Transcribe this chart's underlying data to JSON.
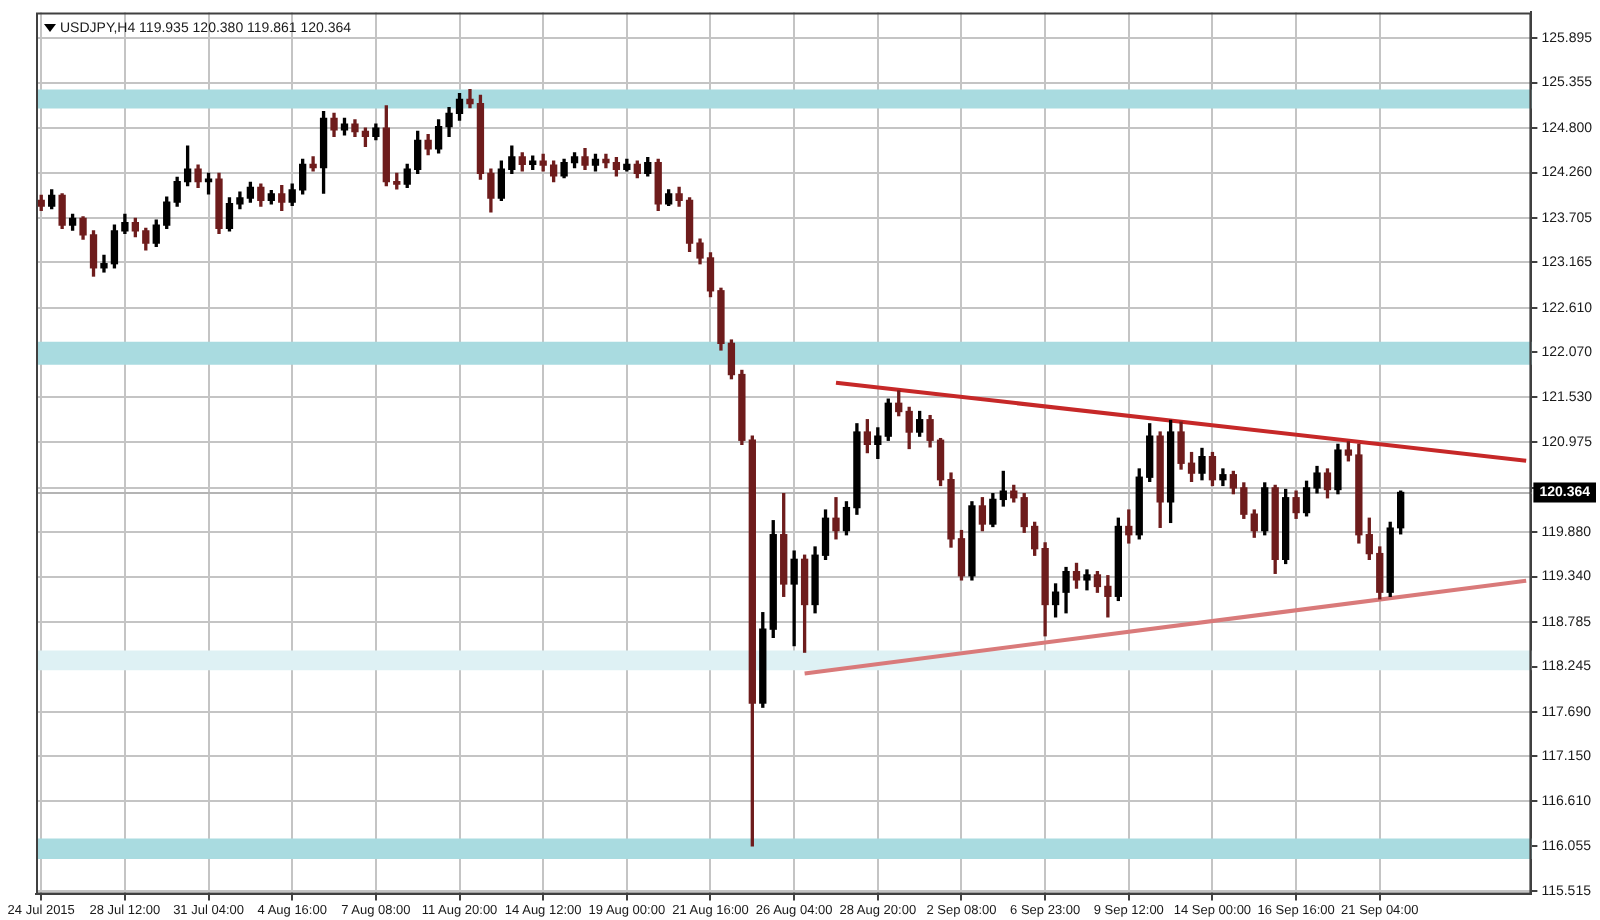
{
  "chart_data": {
    "type": "candlestick",
    "title": "USDJPY,H4 119.935 120.380 119.861 120.364",
    "categories": [
      "24 Jul 2015",
      null,
      null,
      null,
      null,
      null,
      null,
      null,
      "28 Jul 12:00",
      null,
      null,
      null,
      null,
      null,
      null,
      null,
      "31 Jul 04:00",
      null,
      null,
      null,
      null,
      null,
      null,
      null,
      "4 Aug 16:00",
      null,
      null,
      null,
      null,
      null,
      null,
      null,
      "7 Aug 08:00",
      null,
      null,
      null,
      null,
      null,
      null,
      null,
      "11 Aug 20:00",
      null,
      null,
      null,
      null,
      null,
      null,
      null,
      "14 Aug 12:00",
      null,
      null,
      null,
      null,
      null,
      null,
      null,
      "19 Aug 00:00",
      null,
      null,
      null,
      null,
      null,
      null,
      null,
      "21 Aug 16:00",
      null,
      null,
      null,
      null,
      null,
      null,
      null,
      "26 Aug 04:00",
      null,
      null,
      null,
      null,
      null,
      null,
      null,
      "28 Aug 20:00",
      null,
      null,
      null,
      null,
      null,
      null,
      null,
      "2 Sep 08:00",
      null,
      null,
      null,
      null,
      null,
      null,
      null,
      "6 Sep 23:00",
      null,
      null,
      null,
      null,
      null,
      null,
      null,
      "9 Sep 12:00",
      null,
      null,
      null,
      null,
      null,
      null,
      null,
      "14 Sep 00:00",
      null,
      null,
      null,
      null,
      null,
      null,
      null,
      "16 Sep 16:00",
      null,
      null,
      null,
      null,
      null,
      null,
      null,
      "21 Sep 04:00",
      null,
      null,
      null,
      null,
      null,
      null,
      null,
      null,
      null,
      null,
      null,
      null,
      null,
      null
    ],
    "ohlc": [
      [
        123.92,
        123.98,
        123.8,
        123.85
      ],
      [
        123.85,
        124.05,
        123.82,
        123.98
      ],
      [
        123.98,
        124.0,
        123.58,
        123.62
      ],
      [
        123.62,
        123.75,
        123.56,
        123.7
      ],
      [
        123.7,
        123.72,
        123.45,
        123.5
      ],
      [
        123.5,
        123.55,
        123.0,
        123.1
      ],
      [
        123.1,
        123.25,
        123.05,
        123.15
      ],
      [
        123.15,
        123.62,
        123.1,
        123.55
      ],
      [
        123.55,
        123.75,
        123.52,
        123.65
      ],
      [
        123.65,
        123.7,
        123.48,
        123.55
      ],
      [
        123.55,
        123.58,
        123.32,
        123.4
      ],
      [
        123.4,
        123.68,
        123.36,
        123.62
      ],
      [
        123.62,
        123.96,
        123.58,
        123.9
      ],
      [
        123.9,
        124.2,
        123.85,
        124.15
      ],
      [
        124.15,
        124.58,
        124.1,
        124.3
      ],
      [
        124.3,
        124.35,
        124.08,
        124.15
      ],
      [
        124.15,
        124.25,
        124.0,
        124.18
      ],
      [
        124.18,
        124.25,
        123.52,
        123.58
      ],
      [
        123.58,
        123.95,
        123.55,
        123.88
      ],
      [
        123.88,
        124.02,
        123.82,
        123.95
      ],
      [
        123.95,
        124.14,
        123.9,
        124.08
      ],
      [
        124.08,
        124.12,
        123.85,
        123.92
      ],
      [
        123.92,
        124.04,
        123.88,
        124.0
      ],
      [
        124.0,
        124.1,
        123.8,
        123.9
      ],
      [
        123.9,
        124.12,
        123.86,
        124.05
      ],
      [
        124.05,
        124.42,
        124.0,
        124.36
      ],
      [
        124.36,
        124.45,
        124.28,
        124.32
      ],
      [
        124.32,
        125.0,
        124.01,
        124.92
      ],
      [
        124.92,
        124.98,
        124.7,
        124.78
      ],
      [
        124.78,
        124.92,
        124.72,
        124.85
      ],
      [
        124.85,
        124.9,
        124.7,
        124.76
      ],
      [
        124.76,
        124.8,
        124.58,
        124.7
      ],
      [
        124.7,
        124.85,
        124.66,
        124.8
      ],
      [
        124.8,
        125.07,
        124.1,
        124.15
      ],
      [
        124.15,
        124.25,
        124.06,
        124.12
      ],
      [
        124.12,
        124.36,
        124.08,
        124.3
      ],
      [
        124.3,
        124.76,
        124.25,
        124.65
      ],
      [
        124.65,
        124.72,
        124.48,
        124.55
      ],
      [
        124.55,
        124.9,
        124.5,
        124.82
      ],
      [
        124.82,
        125.05,
        124.7,
        124.98
      ],
      [
        124.98,
        125.22,
        124.9,
        125.15
      ],
      [
        125.15,
        125.27,
        125.05,
        125.1
      ],
      [
        125.1,
        125.2,
        124.18,
        124.25
      ],
      [
        124.25,
        124.3,
        123.78,
        123.95
      ],
      [
        123.95,
        124.4,
        123.92,
        124.3
      ],
      [
        124.3,
        124.58,
        124.25,
        124.45
      ],
      [
        124.45,
        124.5,
        124.28,
        124.36
      ],
      [
        124.36,
        124.46,
        124.3,
        124.4
      ],
      [
        124.4,
        124.48,
        124.28,
        124.35
      ],
      [
        124.35,
        124.4,
        124.15,
        124.22
      ],
      [
        124.22,
        124.42,
        124.2,
        124.38
      ],
      [
        124.38,
        124.5,
        124.32,
        124.45
      ],
      [
        124.45,
        124.55,
        124.3,
        124.35
      ],
      [
        124.35,
        124.48,
        124.28,
        124.42
      ],
      [
        124.42,
        124.48,
        124.32,
        124.38
      ],
      [
        124.38,
        124.44,
        124.22,
        124.3
      ],
      [
        124.3,
        124.42,
        124.28,
        124.36
      ],
      [
        124.36,
        124.4,
        124.2,
        124.25
      ],
      [
        124.25,
        124.44,
        124.22,
        124.38
      ],
      [
        124.38,
        124.42,
        123.8,
        123.88
      ],
      [
        123.88,
        124.05,
        123.86,
        124.0
      ],
      [
        124.0,
        124.08,
        123.85,
        123.92
      ],
      [
        123.92,
        123.95,
        123.3,
        123.4
      ],
      [
        123.4,
        123.45,
        123.15,
        123.22
      ],
      [
        123.22,
        123.28,
        122.75,
        122.82
      ],
      [
        122.82,
        122.85,
        122.1,
        122.18
      ],
      [
        122.18,
        122.22,
        121.75,
        121.8
      ],
      [
        121.8,
        121.85,
        120.95,
        121.0
      ],
      [
        121.0,
        121.05,
        116.06,
        117.8
      ],
      [
        117.8,
        118.9,
        117.75,
        118.7
      ],
      [
        118.7,
        120.02,
        118.6,
        119.85
      ],
      [
        119.85,
        120.35,
        119.1,
        119.25
      ],
      [
        119.25,
        119.65,
        118.5,
        119.55
      ],
      [
        119.55,
        119.6,
        118.42,
        119.0
      ],
      [
        119.0,
        119.7,
        118.9,
        119.6
      ],
      [
        119.6,
        120.15,
        119.55,
        120.05
      ],
      [
        120.05,
        120.3,
        119.8,
        119.9
      ],
      [
        119.9,
        120.25,
        119.85,
        120.18
      ],
      [
        120.18,
        121.2,
        120.1,
        121.1
      ],
      [
        121.1,
        121.25,
        120.85,
        120.95
      ],
      [
        120.95,
        121.15,
        120.78,
        121.05
      ],
      [
        121.05,
        121.5,
        121.0,
        121.45
      ],
      [
        121.45,
        121.6,
        121.3,
        121.35
      ],
      [
        121.35,
        121.4,
        120.9,
        121.1
      ],
      [
        121.1,
        121.35,
        121.05,
        121.25
      ],
      [
        121.25,
        121.3,
        120.92,
        121.0
      ],
      [
        121.0,
        121.02,
        120.45,
        120.52
      ],
      [
        120.52,
        120.6,
        119.7,
        119.8
      ],
      [
        119.8,
        119.9,
        119.3,
        119.35
      ],
      [
        119.35,
        120.25,
        119.3,
        120.2
      ],
      [
        120.2,
        120.3,
        119.9,
        119.98
      ],
      [
        119.98,
        120.35,
        119.95,
        120.28
      ],
      [
        120.28,
        120.62,
        120.2,
        120.38
      ],
      [
        120.38,
        120.45,
        120.25,
        120.3
      ],
      [
        120.3,
        120.35,
        119.88,
        119.95
      ],
      [
        119.95,
        120.0,
        119.6,
        119.68
      ],
      [
        119.68,
        119.75,
        118.62,
        119.0
      ],
      [
        119.0,
        119.25,
        118.85,
        119.15
      ],
      [
        119.15,
        119.45,
        118.9,
        119.4
      ],
      [
        119.4,
        119.5,
        119.2,
        119.3
      ],
      [
        119.3,
        119.42,
        119.18,
        119.36
      ],
      [
        119.36,
        119.4,
        119.15,
        119.22
      ],
      [
        119.22,
        119.35,
        118.85,
        119.1
      ],
      [
        119.1,
        120.05,
        119.05,
        119.95
      ],
      [
        119.95,
        120.15,
        119.75,
        119.85
      ],
      [
        119.85,
        120.65,
        119.8,
        120.55
      ],
      [
        120.55,
        121.2,
        120.5,
        121.05
      ],
      [
        121.05,
        121.1,
        119.94,
        120.25
      ],
      [
        120.25,
        121.24,
        120.0,
        121.1
      ],
      [
        121.1,
        121.22,
        120.65,
        120.72
      ],
      [
        120.72,
        120.85,
        120.5,
        120.6
      ],
      [
        120.6,
        120.9,
        120.52,
        120.8
      ],
      [
        120.8,
        120.85,
        120.45,
        120.52
      ],
      [
        120.52,
        120.65,
        120.45,
        120.58
      ],
      [
        120.58,
        120.62,
        120.35,
        120.42
      ],
      [
        120.42,
        120.48,
        120.05,
        120.1
      ],
      [
        120.1,
        120.15,
        119.82,
        119.9
      ],
      [
        119.9,
        120.48,
        119.85,
        120.42
      ],
      [
        120.42,
        120.45,
        119.38,
        119.55
      ],
      [
        119.55,
        120.4,
        119.5,
        120.3
      ],
      [
        120.3,
        120.38,
        120.05,
        120.12
      ],
      [
        120.12,
        120.5,
        120.08,
        120.42
      ],
      [
        120.42,
        120.68,
        120.36,
        120.6
      ],
      [
        120.6,
        120.65,
        120.3,
        120.4
      ],
      [
        120.4,
        120.95,
        120.35,
        120.88
      ],
      [
        120.88,
        120.98,
        120.75,
        120.82
      ],
      [
        120.82,
        120.95,
        119.75,
        119.85
      ],
      [
        119.85,
        120.05,
        119.55,
        119.62
      ],
      [
        119.62,
        119.7,
        119.07,
        119.15
      ],
      [
        119.15,
        120.0,
        119.1,
        119.93
      ],
      [
        119.935,
        120.38,
        119.861,
        120.364
      ],
      null,
      null,
      null,
      null,
      null,
      null,
      null,
      null,
      null,
      null,
      null,
      null
    ],
    "colors": [
      "#6e1c1c",
      "#000000",
      "#6e1c1c",
      "#000000",
      "#6e1c1c",
      "#6e1c1c",
      "#000000",
      "#000000",
      "#000000",
      "#6e1c1c",
      "#6e1c1c",
      "#000000",
      "#000000",
      "#000000",
      "#000000",
      "#6e1c1c",
      "#000000",
      "#6e1c1c",
      "#000000",
      "#000000",
      "#000000",
      "#6e1c1c",
      "#000000",
      "#6e1c1c",
      "#000000",
      "#000000",
      "#6e1c1c",
      "#000000",
      "#6e1c1c",
      "#000000",
      "#6e1c1c",
      "#6e1c1c",
      "#000000",
      "#6e1c1c",
      "#6e1c1c",
      "#000000",
      "#000000",
      "#6e1c1c",
      "#000000",
      "#000000",
      "#000000",
      "#6e1c1c",
      "#6e1c1c",
      "#6e1c1c",
      "#000000",
      "#000000",
      "#6e1c1c",
      "#000000",
      "#6e1c1c",
      "#6e1c1c",
      "#000000",
      "#000000",
      "#6e1c1c",
      "#000000",
      "#6e1c1c",
      "#6e1c1c",
      "#000000",
      "#6e1c1c",
      "#000000",
      "#6e1c1c",
      "#000000",
      "#6e1c1c",
      "#6e1c1c",
      "#6e1c1c",
      "#6e1c1c",
      "#6e1c1c",
      "#6e1c1c",
      "#6e1c1c",
      "#6e1c1c",
      "#000000",
      "#000000",
      "#6e1c1c",
      "#000000",
      "#6e1c1c",
      "#000000",
      "#000000",
      "#6e1c1c",
      "#000000",
      "#000000",
      "#6e1c1c",
      "#000000",
      "#000000",
      "#6e1c1c",
      "#6e1c1c",
      "#000000",
      "#6e1c1c",
      "#6e1c1c",
      "#6e1c1c",
      "#6e1c1c",
      "#000000",
      "#6e1c1c",
      "#000000",
      "#000000",
      "#6e1c1c",
      "#6e1c1c",
      "#6e1c1c",
      "#6e1c1c",
      "#000000",
      "#000000",
      "#6e1c1c",
      "#000000",
      "#6e1c1c",
      "#6e1c1c",
      "#000000",
      "#6e1c1c",
      "#000000",
      "#000000",
      "#6e1c1c",
      "#000000",
      "#6e1c1c",
      "#6e1c1c",
      "#000000",
      "#6e1c1c",
      "#000000",
      "#6e1c1c",
      "#6e1c1c",
      "#6e1c1c",
      "#000000",
      "#6e1c1c",
      "#000000",
      "#6e1c1c",
      "#000000",
      "#000000",
      "#6e1c1c",
      "#000000",
      "#6e1c1c",
      "#6e1c1c",
      "#6e1c1c",
      "#6e1c1c",
      "#000000",
      "#000000",
      null,
      null,
      null,
      null,
      null,
      null,
      null,
      null,
      null,
      null,
      null,
      null
    ],
    "series": [
      {
        "type": "line",
        "color": "#c62828",
        "values": [
          null,
          null,
          null,
          null,
          null,
          null,
          null,
          null,
          null,
          null,
          null,
          null,
          null,
          null,
          null,
          null,
          null,
          null,
          null,
          null,
          null,
          null,
          null,
          null,
          null,
          null,
          null,
          null,
          null,
          null,
          null,
          null,
          null,
          null,
          null,
          null,
          null,
          null,
          null,
          null,
          null,
          null,
          null,
          null,
          null,
          null,
          null,
          null,
          null,
          null,
          null,
          null,
          null,
          null,
          null,
          null,
          null,
          null,
          null,
          null,
          null,
          null,
          null,
          null,
          null,
          null,
          null,
          null,
          null,
          null,
          null,
          null,
          null,
          null,
          null,
          null,
          121.7,
          null,
          null,
          null,
          null,
          null,
          null,
          null,
          null,
          null,
          null,
          null,
          null,
          null,
          null,
          null,
          null,
          null,
          null,
          null,
          null,
          null,
          null,
          null,
          null,
          null,
          null,
          null,
          null,
          null,
          null,
          null,
          null,
          null,
          null,
          null,
          null,
          null,
          null,
          null,
          null,
          null,
          null,
          null,
          null,
          null,
          null,
          null,
          null,
          null,
          null,
          null,
          null,
          null,
          null,
          null,
          null,
          null,
          null,
          null,
          null,
          null,
          null,
          null,
          null,
          null,
          120.75
        ]
      },
      {
        "type": "line",
        "color": "#d97a7a",
        "values": [
          null,
          null,
          null,
          null,
          null,
          null,
          null,
          null,
          null,
          null,
          null,
          null,
          null,
          null,
          null,
          null,
          null,
          null,
          null,
          null,
          null,
          null,
          null,
          null,
          null,
          null,
          null,
          null,
          null,
          null,
          null,
          null,
          null,
          null,
          null,
          null,
          null,
          null,
          null,
          null,
          null,
          null,
          null,
          null,
          null,
          null,
          null,
          null,
          null,
          null,
          null,
          null,
          null,
          null,
          null,
          null,
          null,
          null,
          null,
          null,
          null,
          null,
          null,
          null,
          null,
          null,
          null,
          null,
          null,
          null,
          null,
          null,
          null,
          118.16,
          null,
          null,
          null,
          null,
          null,
          null,
          null,
          null,
          null,
          null,
          null,
          null,
          null,
          null,
          null,
          null,
          null,
          null,
          null,
          null,
          null,
          null,
          null,
          null,
          null,
          null,
          null,
          null,
          null,
          null,
          null,
          null,
          null,
          null,
          null,
          null,
          null,
          null,
          null,
          null,
          null,
          null,
          null,
          null,
          null,
          null,
          null,
          null,
          null,
          null,
          null,
          null,
          null,
          null,
          null,
          null,
          null,
          null,
          null,
          null,
          null,
          null,
          null,
          null,
          null,
          null,
          null,
          null,
          119.29
        ]
      }
    ],
    "ylim": [
      115.47,
      126.21
    ],
    "yticks": [
      {
        "value": 115.515,
        "label": "115.515"
      },
      116.055,
      {
        "value": 116.61,
        "label": "116.610"
      },
      {
        "value": 117.15,
        "label": "117.150"
      },
      {
        "value": 117.69,
        "label": "117.690"
      },
      118.245,
      118.785,
      {
        "value": 119.34,
        "label": "119.340"
      },
      {
        "value": 119.88,
        "label": "119.880"
      },
      {
        "value": 120.42,
        "label": null
      },
      120.975,
      {
        "value": 121.53,
        "label": "121.530"
      },
      {
        "value": 122.07,
        "label": "122.070"
      },
      {
        "value": 122.61,
        "label": "122.610"
      },
      123.165,
      123.705,
      {
        "value": 124.26,
        "label": "124.260"
      },
      {
        "value": 124.8,
        "label": "124.800"
      },
      125.355,
      125.895
    ],
    "grid": true,
    "bands": [
      {
        "axis": "y",
        "from": 125.04,
        "to": 125.27,
        "color": "#a9dbe0"
      },
      {
        "axis": "y",
        "from": 121.92,
        "to": 122.2,
        "color": "#a9dbe0"
      },
      {
        "axis": "y",
        "from": 118.2,
        "to": 118.44,
        "color": "#def1f4"
      },
      {
        "axis": "y",
        "from": 115.9,
        "to": 116.15,
        "color": "#a9dbe0"
      }
    ],
    "ref_lines": [
      {
        "axis": "y",
        "value": 120.364,
        "label": "120.364",
        "color": "#b4b4b4"
      }
    ]
  }
}
